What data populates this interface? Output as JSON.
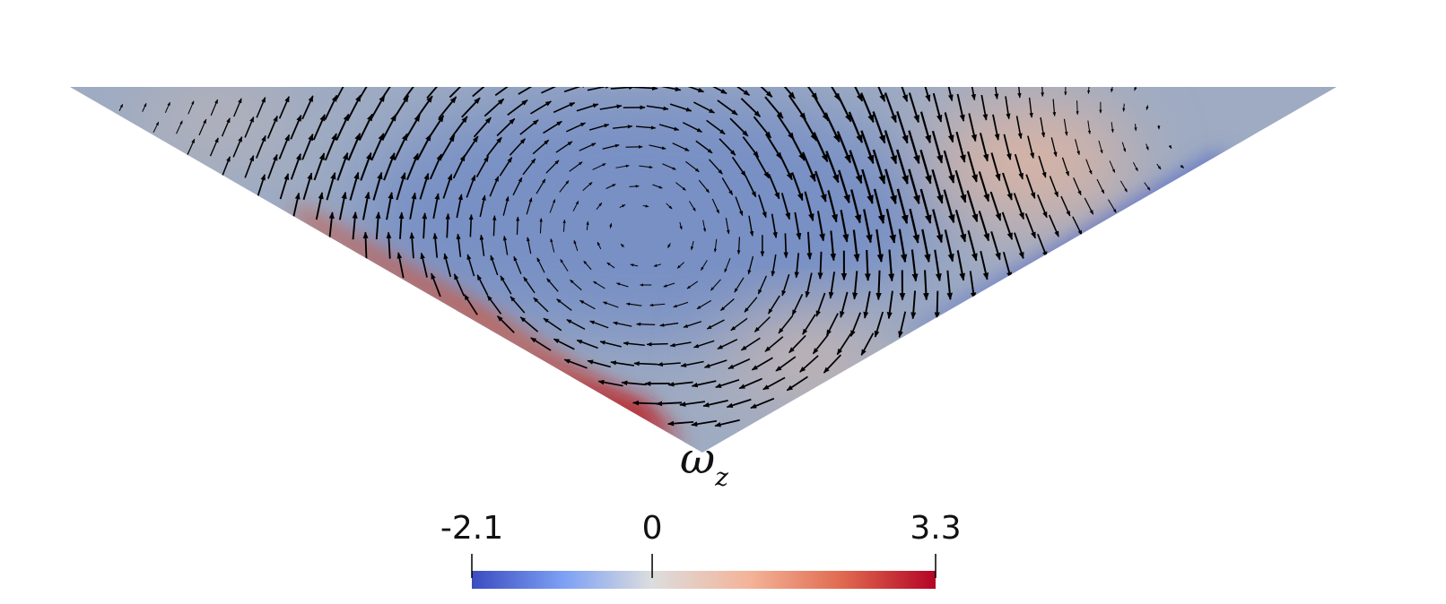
{
  "colorbar": {
    "label": "ω",
    "label_subscript": "z",
    "range": [
      -2.1,
      3.3
    ],
    "ticks": [
      -2.1,
      0,
      3.3
    ]
  }
}
